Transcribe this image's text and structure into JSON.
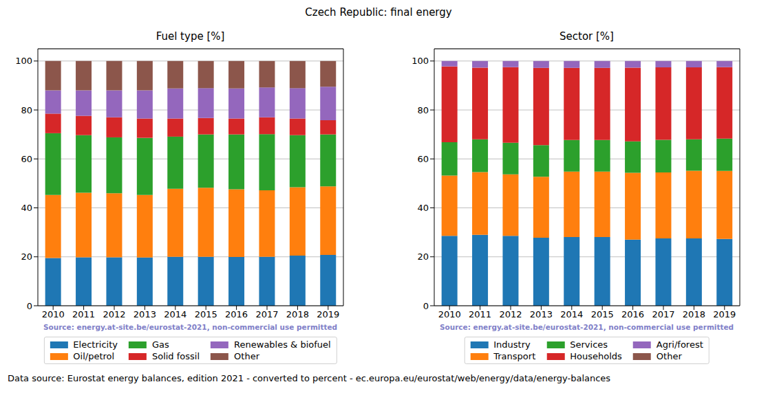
{
  "title": "Czech Republic: final energy",
  "footer": "Data source: Eurostat energy balances, edition 2021 - converted to percent - ec.europa.eu/eurostat/web/energy/data/energy-balances",
  "chart_data": [
    {
      "type": "bar",
      "stacked": true,
      "grid": true,
      "title": "Fuel type [%]",
      "annotation": "Source: energy.at-site.be/eurostat-2021, non-commercial use permitted",
      "categories": [
        "2010",
        "2011",
        "2012",
        "2013",
        "2014",
        "2015",
        "2016",
        "2017",
        "2018",
        "2019"
      ],
      "ylim": [
        0,
        105
      ],
      "yticks": [
        0,
        20,
        40,
        60,
        80,
        100
      ],
      "legend": "bottom",
      "series": [
        {
          "name": "Electricity",
          "color": "#1f77b4",
          "values": [
            19.5,
            19.8,
            19.8,
            19.7,
            20.0,
            20.0,
            19.9,
            20.0,
            20.5,
            20.8
          ]
        },
        {
          "name": "Oil/petrol",
          "color": "#ff7f0e",
          "values": [
            25.8,
            26.4,
            26.2,
            25.6,
            27.8,
            28.2,
            27.7,
            27.2,
            27.9,
            28.0
          ]
        },
        {
          "name": "Gas",
          "color": "#2ca02c",
          "values": [
            25.2,
            23.5,
            22.8,
            23.3,
            21.3,
            21.8,
            22.4,
            22.9,
            21.3,
            21.2
          ]
        },
        {
          "name": "Solid fossil",
          "color": "#d62728",
          "values": [
            8.0,
            7.9,
            8.2,
            7.9,
            7.4,
            6.7,
            6.5,
            6.9,
            6.8,
            5.8
          ]
        },
        {
          "name": "Renewables & biofuel",
          "color": "#9467bd",
          "values": [
            9.5,
            10.4,
            11.0,
            11.5,
            12.3,
            12.2,
            12.3,
            12.2,
            12.4,
            13.7
          ]
        },
        {
          "name": "Other",
          "color": "#8c564b",
          "values": [
            12.0,
            12.0,
            12.0,
            12.0,
            11.2,
            11.1,
            11.2,
            10.8,
            11.1,
            10.5
          ]
        }
      ]
    },
    {
      "type": "bar",
      "stacked": true,
      "grid": true,
      "title": "Sector [%]",
      "annotation": "Source: energy.at-site.be/eurostat-2021, non-commercial use permitted",
      "categories": [
        "2010",
        "2011",
        "2012",
        "2013",
        "2014",
        "2015",
        "2016",
        "2017",
        "2018",
        "2019"
      ],
      "ylim": [
        0,
        105
      ],
      "yticks": [
        0,
        20,
        40,
        60,
        80,
        100
      ],
      "legend": "bottom",
      "series": [
        {
          "name": "Industry",
          "color": "#1f77b4",
          "values": [
            28.6,
            29.0,
            28.6,
            27.8,
            28.1,
            28.1,
            27.0,
            27.5,
            27.5,
            27.3
          ]
        },
        {
          "name": "Transport",
          "color": "#ff7f0e",
          "values": [
            24.6,
            25.6,
            25.1,
            24.9,
            26.7,
            26.7,
            27.3,
            27.0,
            27.7,
            27.8
          ]
        },
        {
          "name": "Services",
          "color": "#2ca02c",
          "values": [
            13.6,
            13.4,
            12.9,
            12.9,
            12.9,
            12.9,
            12.9,
            13.3,
            12.8,
            13.2
          ]
        },
        {
          "name": "Households",
          "color": "#d62728",
          "values": [
            31.0,
            29.3,
            30.9,
            31.6,
            29.5,
            29.5,
            30.1,
            29.6,
            29.4,
            29.2
          ]
        },
        {
          "name": "Agri/forest",
          "color": "#9467bd",
          "values": [
            2.2,
            2.7,
            2.5,
            2.8,
            2.8,
            2.8,
            2.7,
            2.6,
            2.6,
            2.5
          ]
        },
        {
          "name": "Other",
          "color": "#8c564b",
          "values": [
            0,
            0,
            0,
            0,
            0,
            0,
            0,
            0,
            0,
            0
          ]
        }
      ]
    }
  ]
}
